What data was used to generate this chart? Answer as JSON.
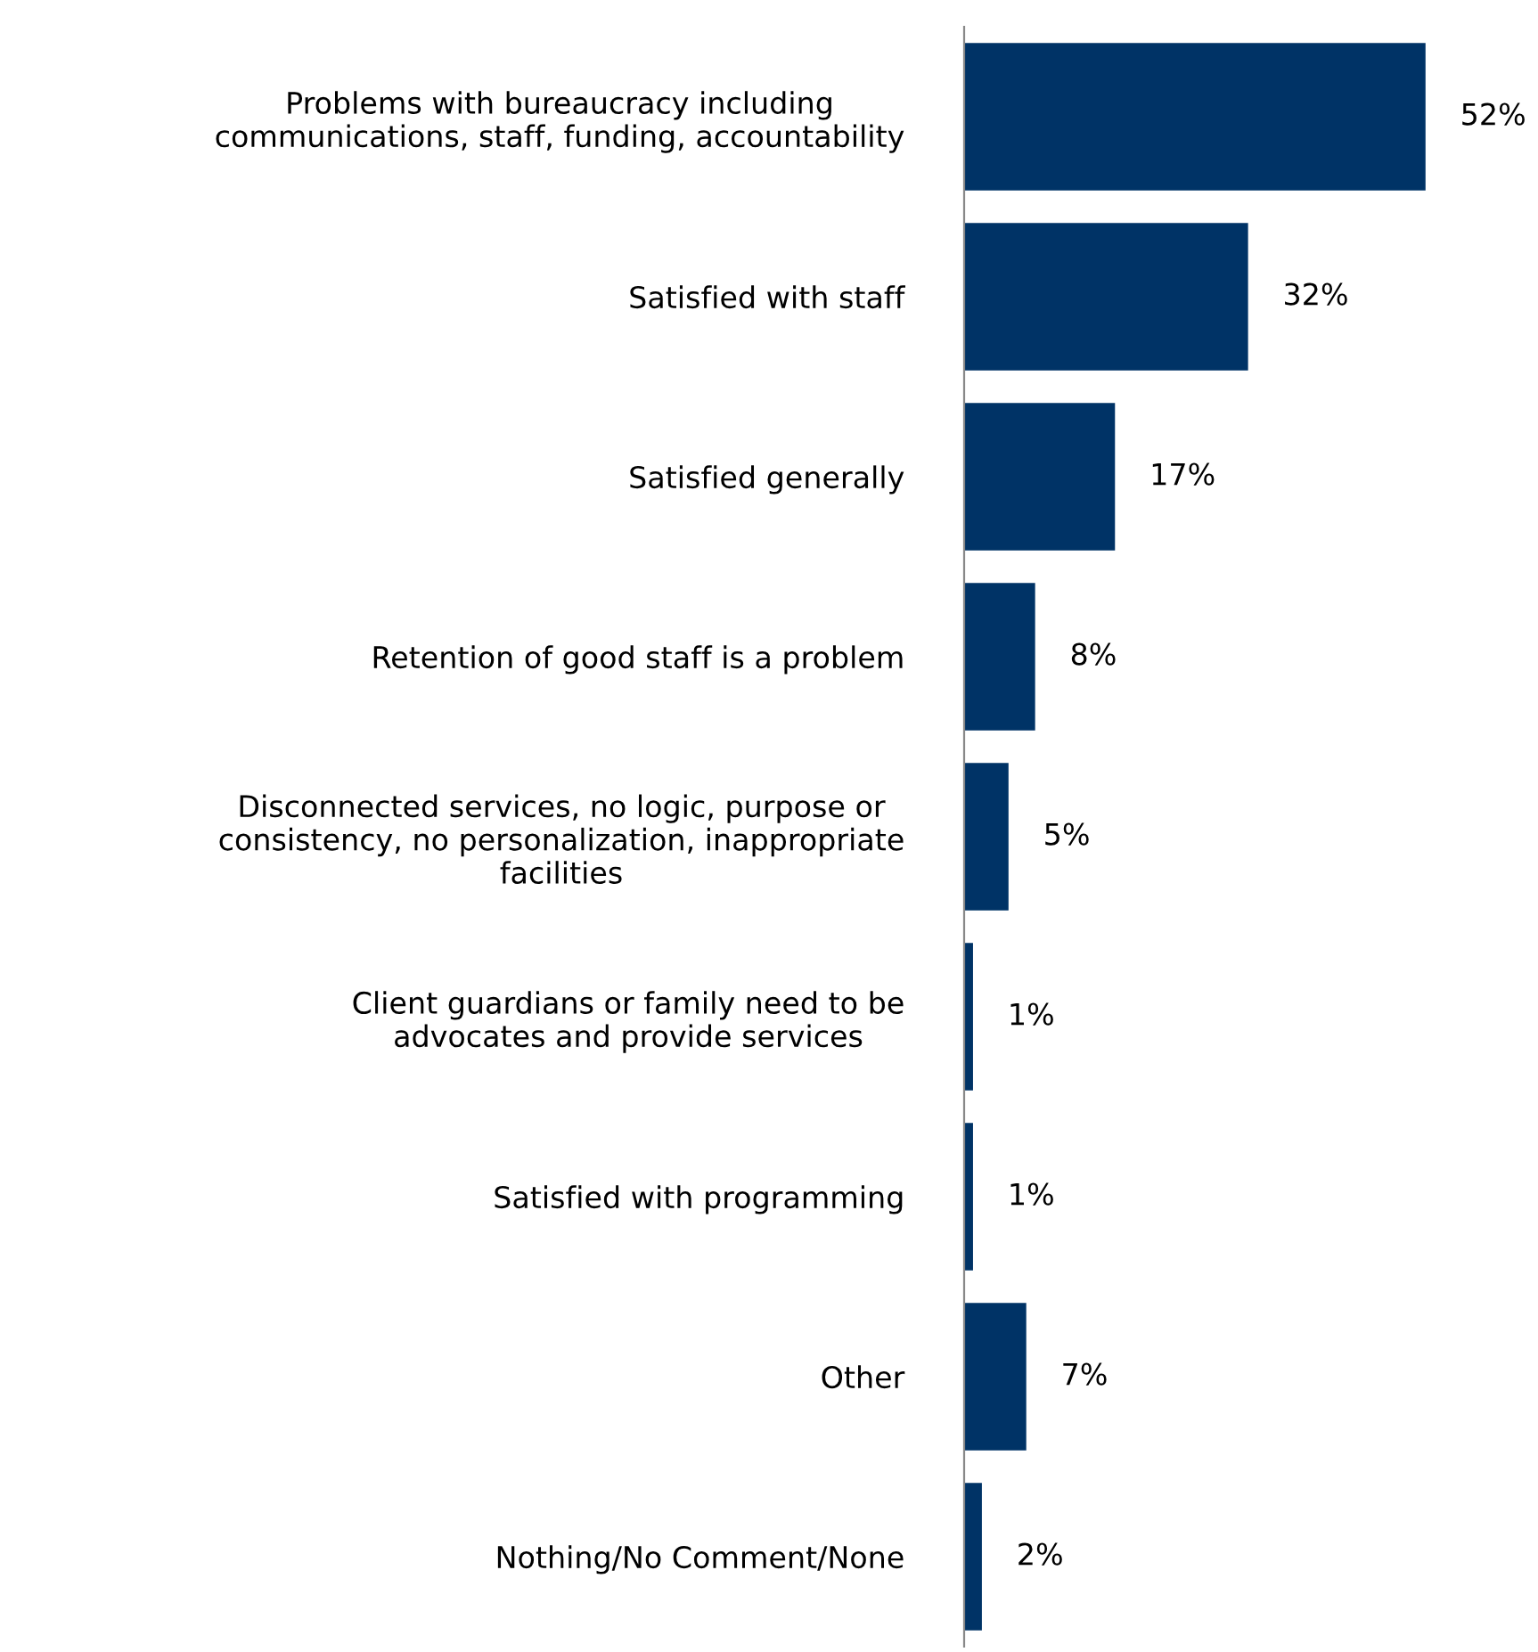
{
  "chart_data": {
    "type": "bar",
    "orientation": "horizontal",
    "categories": [
      "Problems with bureaucracy including\ncommunications, staff, funding, accountability",
      "Satisfied with staff",
      "Satisfied generally",
      "Retention of good staff is a problem",
      "Disconnected services, no logic, purpose or\nconsistency, no personalization, inappropriate\nfacilities",
      "Client guardians or family need to be\nadvocates and provide services",
      "Satisfied with programming",
      "Other",
      "Nothing/No Comment/None"
    ],
    "values": [
      52,
      32,
      17,
      8,
      5,
      1,
      1,
      7,
      2
    ],
    "value_labels": [
      "52%",
      "32%",
      "17%",
      "8%",
      "5%",
      "1%",
      "1%",
      "7%",
      "2%"
    ],
    "color": "#003366",
    "grid": false,
    "legend": false
  }
}
